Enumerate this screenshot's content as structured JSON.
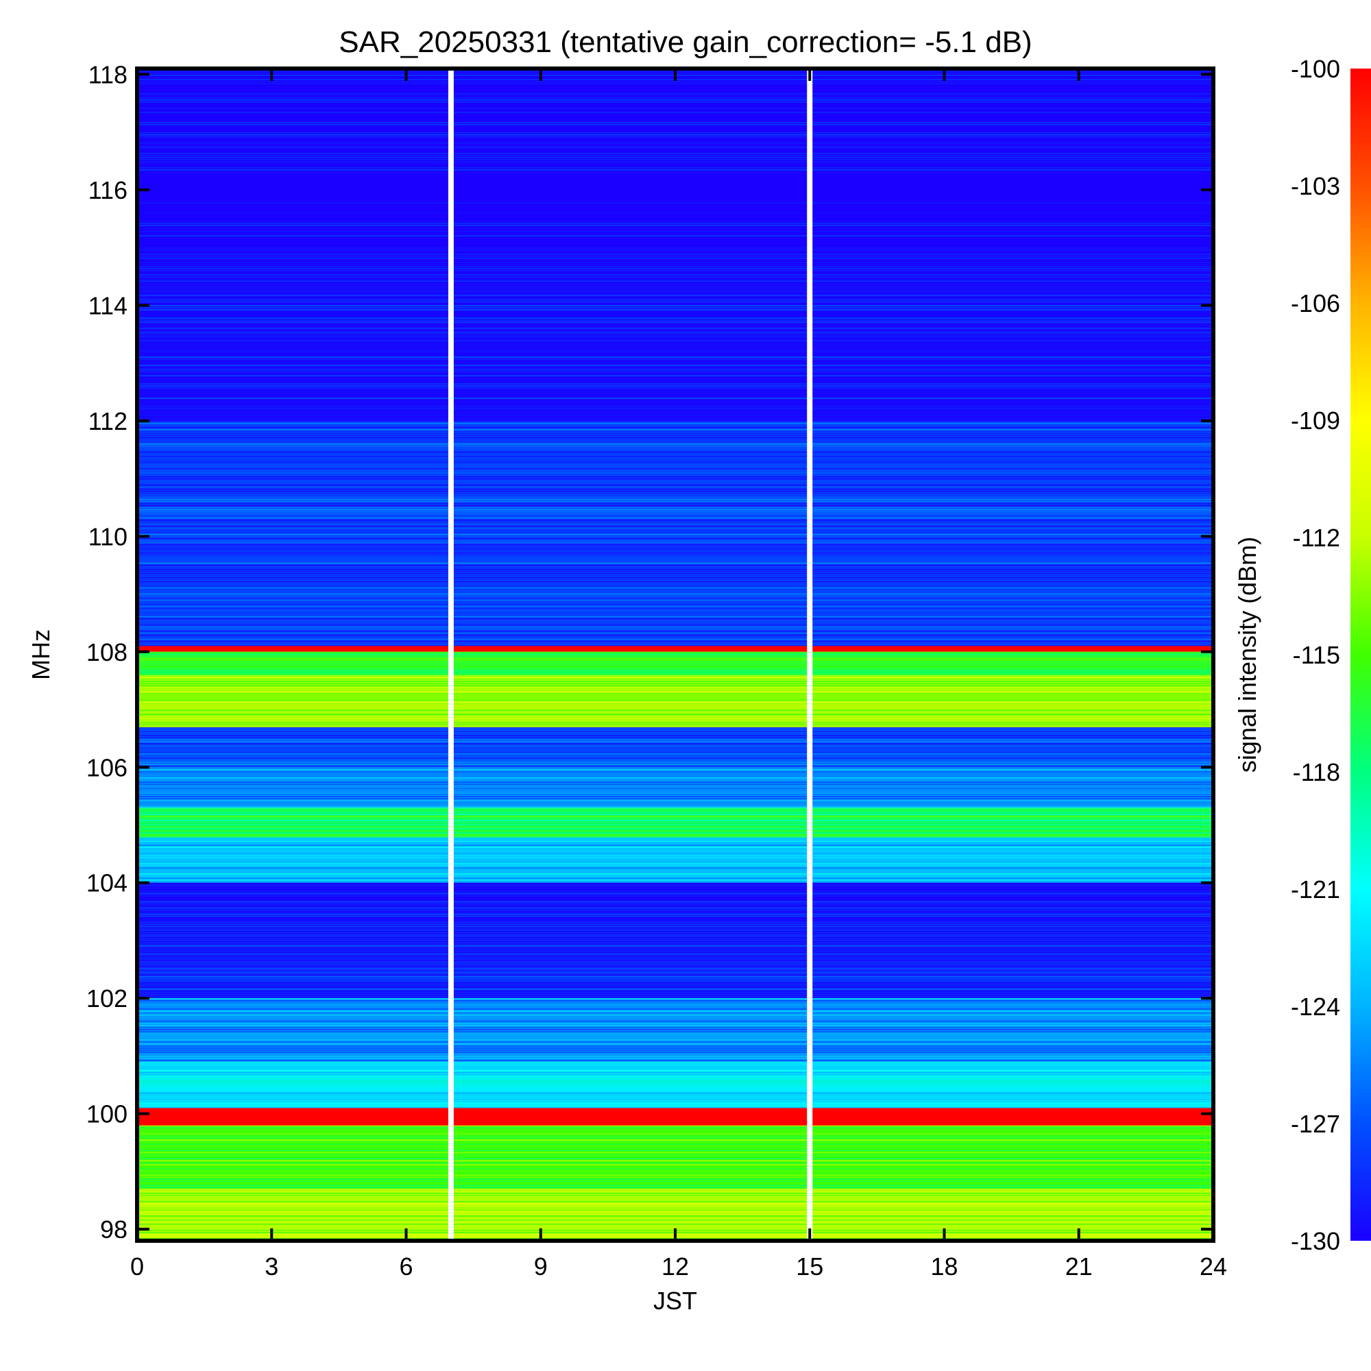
{
  "chart_data": {
    "type": "heatmap",
    "title": "SAR_20250331 (tentative gain_correction= -5.1 dB)",
    "xlabel": "JST",
    "ylabel": "MHz",
    "colorbar_label": "signal intensity (dBm)",
    "xlim": [
      0,
      24
    ],
    "ylim": [
      97.8,
      118.1
    ],
    "clim": [
      -130,
      -100
    ],
    "x_ticks": [
      0,
      3,
      6,
      9,
      12,
      15,
      18,
      21,
      24
    ],
    "x_tick_labels": [
      "0",
      "3",
      "6",
      "9",
      "12",
      "15",
      "18",
      "21",
      "24"
    ],
    "y_ticks": [
      98,
      100,
      102,
      104,
      106,
      108,
      110,
      112,
      114,
      116,
      118
    ],
    "y_tick_labels": [
      "98",
      "100",
      "102",
      "104",
      "106",
      "108",
      "110",
      "112",
      "114",
      "116",
      "118"
    ],
    "colorbar_ticks": [
      -100,
      -103,
      -106,
      -109,
      -112,
      -115,
      -118,
      -121,
      -124,
      -127,
      -130
    ],
    "colorbar_tick_labels": [
      "-100",
      "-103",
      "-106",
      "-109",
      "-112",
      "-115",
      "-118",
      "-121",
      "-124",
      "-127",
      "-130"
    ],
    "colormap": [
      "#1a00ff",
      "#0050ff",
      "#00b4ff",
      "#00ffff",
      "#00ff80",
      "#40ff00",
      "#c8ff00",
      "#ffff00",
      "#ffb400",
      "#ff5000",
      "#ff0000"
    ],
    "data_gaps_jst": [
      7.0,
      15.0
    ],
    "bands": [
      {
        "mhz": [
          97.8,
          98.7
        ],
        "dbm": -112.5
      },
      {
        "mhz": [
          98.7,
          99.8
        ],
        "dbm": -115
      },
      {
        "mhz": [
          99.8,
          100.1
        ],
        "dbm": -99
      },
      {
        "mhz": [
          100.1,
          100.9
        ],
        "dbm": -122
      },
      {
        "mhz": [
          100.9,
          102.0
        ],
        "dbm": -125
      },
      {
        "mhz": [
          102.0,
          103.2
        ],
        "dbm": -128.5
      },
      {
        "mhz": [
          103.2,
          104.0
        ],
        "dbm": -129.5
      },
      {
        "mhz": [
          104.0,
          104.8
        ],
        "dbm": -123.5
      },
      {
        "mhz": [
          104.8,
          105.3
        ],
        "dbm": -117
      },
      {
        "mhz": [
          105.3,
          106.0
        ],
        "dbm": -125
      },
      {
        "mhz": [
          106.0,
          106.7
        ],
        "dbm": -127
      },
      {
        "mhz": [
          106.7,
          107.6
        ],
        "dbm": -113
      },
      {
        "mhz": [
          107.6,
          108.0
        ],
        "dbm": -116
      },
      {
        "mhz": [
          108.0,
          108.1
        ],
        "dbm": -99
      },
      {
        "mhz": [
          108.1,
          112.0
        ],
        "dbm": -127.5
      },
      {
        "mhz": [
          112.0,
          114.5
        ],
        "dbm": -129.5
      },
      {
        "mhz": [
          114.5,
          118.1
        ],
        "dbm": -130
      }
    ]
  }
}
